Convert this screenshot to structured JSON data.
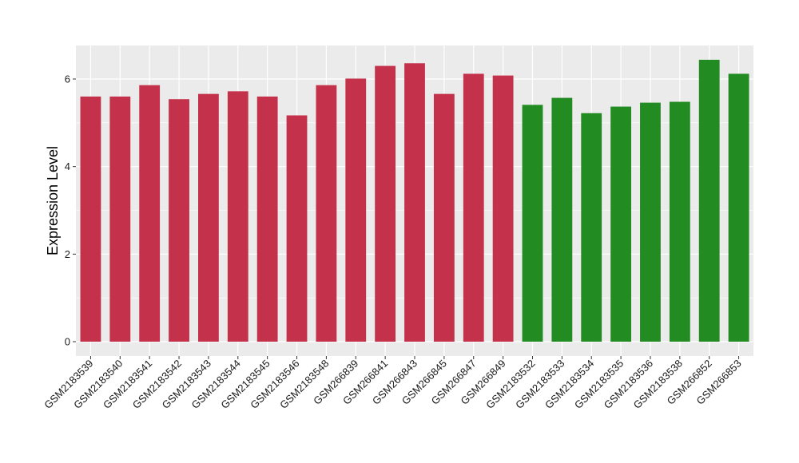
{
  "chart_data": {
    "type": "bar",
    "title": "",
    "xlabel": "",
    "ylabel": "Expression Level",
    "ylim": [
      0,
      6.8
    ],
    "yticks": [
      0,
      2,
      4,
      6
    ],
    "grid": true,
    "legend": "none",
    "colors": {
      "group1": "#c4314b",
      "group2": "#228b22",
      "panel": "#ebebeb",
      "gridline": "#ffffff"
    },
    "categories": [
      "GSM2183539",
      "GSM2183540",
      "GSM2183541",
      "GSM2183542",
      "GSM2183543",
      "GSM2183544",
      "GSM2183545",
      "GSM2183546",
      "GSM2183548",
      "GSM266839",
      "GSM266841",
      "GSM266843",
      "GSM266845",
      "GSM266847",
      "GSM266849",
      "GSM2183532",
      "GSM2183533",
      "GSM2183534",
      "GSM2183535",
      "GSM2183536",
      "GSM2183538",
      "GSM266852",
      "GSM266853"
    ],
    "values": [
      5.6,
      5.6,
      5.86,
      5.54,
      5.66,
      5.72,
      5.6,
      5.17,
      5.86,
      6.01,
      6.3,
      6.36,
      5.66,
      6.12,
      6.08,
      5.41,
      5.57,
      5.22,
      5.37,
      5.46,
      5.48,
      6.44,
      6.12
    ],
    "groups": [
      1,
      1,
      1,
      1,
      1,
      1,
      1,
      1,
      1,
      1,
      1,
      1,
      1,
      1,
      1,
      2,
      2,
      2,
      2,
      2,
      2,
      2,
      2
    ]
  }
}
